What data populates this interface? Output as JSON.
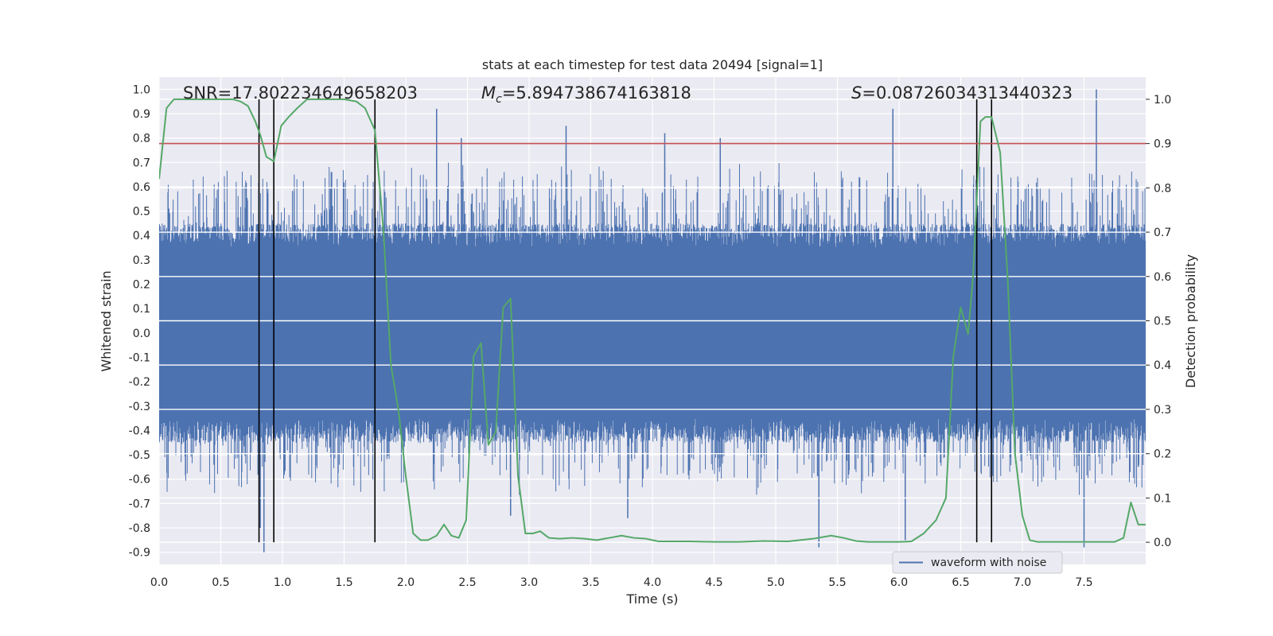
{
  "chart_data": {
    "type": "line",
    "title": "stats at each timestep for test data 20494 [signal=1]",
    "xlabel": "Time (s)",
    "ylabel": "Whitened strain",
    "y2label": "Detection probability",
    "xlim": [
      0,
      8.0
    ],
    "ylim": [
      -0.95,
      1.05
    ],
    "y2lim": [
      -0.05,
      1.05
    ],
    "xticks": [
      0.0,
      0.5,
      1.0,
      1.5,
      2.0,
      2.5,
      3.0,
      3.5,
      4.0,
      4.5,
      5.0,
      5.5,
      6.0,
      6.5,
      7.0,
      7.5
    ],
    "xtick_labels": [
      "0.0",
      "0.5",
      "1.0",
      "1.5",
      "2.0",
      "2.5",
      "3.0",
      "3.5",
      "4.0",
      "4.5",
      "5.0",
      "5.5",
      "6.0",
      "6.5",
      "7.0",
      "7.5"
    ],
    "yticks": [
      1.0,
      0.9,
      0.8,
      0.7,
      0.6,
      0.5,
      0.4,
      0.3,
      0.2,
      0.1,
      0.0,
      -0.1,
      -0.2,
      -0.3,
      -0.4,
      -0.5,
      -0.6,
      -0.7,
      -0.8,
      -0.9
    ],
    "ytick_labels": [
      "1.0",
      "0.9",
      "0.8",
      "0.7",
      "0.6",
      "0.5",
      "0.4",
      "0.3",
      "0.2",
      "0.1",
      "0.0",
      "-0.1",
      "-0.2",
      "-0.3",
      "-0.4",
      "-0.5",
      "-0.6",
      "-0.7",
      "-0.8",
      "-0.9"
    ],
    "y2ticks": [
      1.0,
      0.9,
      0.8,
      0.7,
      0.6,
      0.5,
      0.4,
      0.3,
      0.2,
      0.1,
      0.0
    ],
    "y2tick_labels": [
      "1.0",
      "0.9",
      "0.8",
      "0.7",
      "0.6",
      "0.5",
      "0.4",
      "0.3",
      "0.2",
      "0.1",
      "0.0"
    ],
    "grid": true,
    "annotations": [
      {
        "text": "SNR=17.802234649658203",
        "x": 0.2,
        "y": 1.02
      },
      {
        "prefix": "M",
        "sub": "c",
        "text": "=5.894738674163818",
        "x": 2.6,
        "y": 1.02
      },
      {
        "prefix": "S",
        "text": "=0.08726034313440323",
        "x": 5.6,
        "y": 1.02
      }
    ],
    "threshold": {
      "axis": "y2",
      "value": 0.9,
      "color": "#c44e52"
    },
    "vlines": [
      0.81,
      0.93,
      1.75,
      6.63,
      6.75
    ],
    "legend": {
      "position": "bottom-right",
      "entries": [
        {
          "label": "waveform with noise",
          "color": "#4c72b0"
        }
      ]
    },
    "waveform": {
      "name": "waveform with noise",
      "color": "#4c72b0",
      "t_start": 0.0,
      "t_end": 8.0,
      "band_envelope": 0.35,
      "peaks": [
        {
          "t": 0.85,
          "y": -0.9
        },
        {
          "t": 0.82,
          "y": -0.8
        },
        {
          "t": 2.25,
          "y": 0.92
        },
        {
          "t": 2.45,
          "y": 0.8
        },
        {
          "t": 3.3,
          "y": 0.85
        },
        {
          "t": 4.1,
          "y": 0.82
        },
        {
          "t": 4.55,
          "y": 0.8
        },
        {
          "t": 5.35,
          "y": -0.88
        },
        {
          "t": 5.95,
          "y": 0.92
        },
        {
          "t": 7.6,
          "y": 1.0
        },
        {
          "t": 7.5,
          "y": -0.88
        },
        {
          "t": 6.05,
          "y": -0.85
        },
        {
          "t": 2.85,
          "y": -0.75
        },
        {
          "t": 3.8,
          "y": -0.76
        }
      ]
    },
    "probability": {
      "name": "Detection probability",
      "color": "#55a868",
      "t": [
        0.0,
        0.06,
        0.12,
        0.2,
        0.3,
        0.4,
        0.5,
        0.6,
        0.66,
        0.72,
        0.78,
        0.82,
        0.87,
        0.93,
        0.99,
        1.05,
        1.12,
        1.2,
        1.3,
        1.4,
        1.5,
        1.6,
        1.67,
        1.75,
        1.82,
        1.88,
        1.94,
        2.0,
        2.06,
        2.12,
        2.18,
        2.25,
        2.31,
        2.37,
        2.43,
        2.49,
        2.55,
        2.61,
        2.67,
        2.73,
        2.79,
        2.85,
        2.91,
        2.97,
        3.03,
        3.09,
        3.16,
        3.25,
        3.35,
        3.45,
        3.55,
        3.65,
        3.75,
        3.85,
        3.95,
        4.05,
        4.15,
        4.3,
        4.5,
        4.7,
        4.9,
        5.1,
        5.3,
        5.45,
        5.55,
        5.65,
        5.75,
        5.9,
        6.0,
        6.1,
        6.2,
        6.3,
        6.38,
        6.44,
        6.5,
        6.56,
        6.6,
        6.66,
        6.7,
        6.75,
        6.82,
        6.88,
        6.94,
        7.0,
        7.06,
        7.12,
        7.2,
        7.3,
        7.45,
        7.6,
        7.75,
        7.82,
        7.88,
        7.94,
        8.0
      ],
      "p": [
        0.82,
        0.98,
        1.0,
        1.0,
        1.0,
        1.0,
        1.0,
        1.0,
        0.995,
        0.985,
        0.95,
        0.92,
        0.87,
        0.86,
        0.94,
        0.96,
        0.98,
        1.0,
        1.0,
        1.0,
        1.0,
        0.995,
        0.98,
        0.93,
        0.7,
        0.4,
        0.3,
        0.15,
        0.02,
        0.005,
        0.005,
        0.015,
        0.04,
        0.015,
        0.01,
        0.05,
        0.42,
        0.45,
        0.22,
        0.25,
        0.53,
        0.55,
        0.15,
        0.02,
        0.02,
        0.025,
        0.01,
        0.008,
        0.01,
        0.008,
        0.005,
        0.01,
        0.015,
        0.01,
        0.008,
        0.002,
        0.002,
        0.002,
        0.001,
        0.001,
        0.003,
        0.002,
        0.008,
        0.015,
        0.01,
        0.003,
        0.001,
        0.001,
        0.001,
        0.002,
        0.02,
        0.05,
        0.1,
        0.42,
        0.53,
        0.47,
        0.6,
        0.95,
        0.96,
        0.96,
        0.88,
        0.6,
        0.2,
        0.06,
        0.005,
        0.001,
        0.001,
        0.001,
        0.001,
        0.001,
        0.001,
        0.01,
        0.09,
        0.04,
        0.04
      ]
    }
  }
}
